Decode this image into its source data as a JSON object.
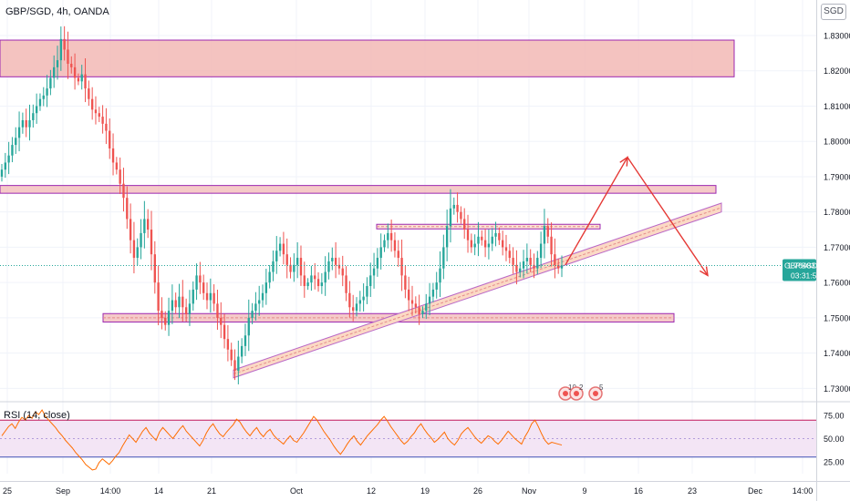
{
  "header": {
    "symbol_title": "GBP/SGD, 4h, OANDA",
    "currency_button": "SGD"
  },
  "price_tag": {
    "symbol": "GBPSGD",
    "price": "1.76483",
    "countdown": "03:31:59"
  },
  "rsi": {
    "title": "RSI (14, close)",
    "upper_band": 70,
    "lower_band": 30
  },
  "markers": [
    {
      "count": "10"
    },
    {
      "count": "2"
    },
    {
      "count": "5"
    }
  ],
  "colors": {
    "zone_fill": "#f2b8b5",
    "zone_border": "#9c27b0",
    "channel_fill": "#fbd9c4",
    "channel_border": "#b967c7",
    "arrow": "#e53935",
    "candle_up": "#26a69a",
    "candle_down": "#ef5350",
    "rsi_line": "#ff6d00",
    "rsi_band": "#f3e5f5"
  },
  "chart_data": [
    {
      "type": "candlestick",
      "title": "GBP/SGD, 4h, OANDA",
      "x_tick_labels": [
        "25",
        "Sep",
        "14:00",
        "14",
        "21",
        "Oct",
        "12",
        "19",
        "26",
        "Nov",
        "9",
        "16",
        "23",
        "Dec",
        "14:00"
      ],
      "y_tick_labels": [
        "1.83000",
        "1.82000",
        "1.81000",
        "1.80000",
        "1.79000",
        "1.78000",
        "1.77000",
        "1.76000",
        "1.75000",
        "1.74000",
        "1.73000"
      ],
      "ylim": [
        1.727,
        1.838
      ],
      "last_price": 1.76483,
      "series": [
        {
          "name": "close",
          "values": [
            1.792,
            1.794,
            1.796,
            1.799,
            1.801,
            1.804,
            1.806,
            1.804,
            1.806,
            1.808,
            1.81,
            1.812,
            1.813,
            1.815,
            1.818,
            1.821,
            1.823,
            1.829,
            1.826,
            1.822,
            1.821,
            1.818,
            1.817,
            1.819,
            1.815,
            1.812,
            1.809,
            1.808,
            1.807,
            1.805,
            1.803,
            1.798,
            1.794,
            1.792,
            1.788,
            1.784,
            1.778,
            1.772,
            1.767,
            1.77,
            1.774,
            1.778,
            1.775,
            1.768,
            1.76,
            1.752,
            1.75,
            1.748,
            1.752,
            1.755,
            1.753,
            1.756,
            1.753,
            1.751,
            1.754,
            1.758,
            1.762,
            1.76,
            1.757,
            1.755,
            1.757,
            1.754,
            1.75,
            1.748,
            1.744,
            1.741,
            1.738,
            1.735,
            1.739,
            1.742,
            1.745,
            1.75,
            1.752,
            1.754,
            1.755,
            1.757,
            1.76,
            1.763,
            1.766,
            1.769,
            1.771,
            1.768,
            1.765,
            1.763,
            1.765,
            1.767,
            1.762,
            1.759,
            1.76,
            1.762,
            1.761,
            1.759,
            1.76,
            1.763,
            1.766,
            1.767,
            1.765,
            1.764,
            1.762,
            1.757,
            1.753,
            1.752,
            1.754,
            1.755,
            1.756,
            1.759,
            1.762,
            1.764,
            1.767,
            1.77,
            1.772,
            1.774,
            1.772,
            1.769,
            1.767,
            1.762,
            1.758,
            1.755,
            1.754,
            1.753,
            1.751,
            1.752,
            1.754,
            1.756,
            1.758,
            1.76,
            1.764,
            1.77,
            1.776,
            1.781,
            1.782,
            1.78,
            1.778,
            1.775,
            1.772,
            1.77,
            1.771,
            1.773,
            1.772,
            1.77,
            1.771,
            1.773,
            1.774,
            1.772,
            1.77,
            1.769,
            1.767,
            1.765,
            1.763,
            1.764,
            1.766,
            1.767,
            1.765,
            1.764,
            1.767,
            1.771,
            1.776,
            1.773,
            1.768,
            1.765,
            1.764,
            1.7648
          ]
        }
      ],
      "annotations": [
        {
          "kind": "zone",
          "y_range": [
            1.8183,
            1.8287
          ]
        },
        {
          "kind": "zone",
          "y_range": [
            1.7853,
            1.7875
          ]
        },
        {
          "kind": "zone",
          "y_range": [
            1.7488,
            1.7512
          ]
        },
        {
          "kind": "zone",
          "y_range": [
            1.7752,
            1.7765
          ]
        },
        {
          "kind": "rising_channel",
          "from": [
            1.733,
            1.7352
          ],
          "to": [
            1.78,
            1.7825
          ]
        },
        {
          "kind": "projection_arrow",
          "path": [
            1.765,
            1.7955,
            1.762
          ]
        }
      ]
    },
    {
      "type": "line",
      "title": "RSI (14, close)",
      "y_tick_labels": [
        "75.00",
        "50.00",
        "25.00"
      ],
      "ylim": [
        12,
        85
      ],
      "bands": [
        30,
        70
      ],
      "series": [
        {
          "name": "RSI",
          "values": [
            53,
            58,
            63,
            66,
            61,
            68,
            73,
            70,
            75,
            72,
            79,
            76,
            81,
            74,
            70,
            66,
            62,
            57,
            53,
            48,
            44,
            40,
            35,
            31,
            27,
            22,
            19,
            16,
            17,
            24,
            28,
            25,
            22,
            26,
            31,
            35,
            42,
            48,
            54,
            50,
            46,
            52,
            58,
            62,
            56,
            52,
            48,
            57,
            62,
            58,
            54,
            50,
            55,
            60,
            64,
            58,
            54,
            50,
            46,
            42,
            48,
            56,
            62,
            66,
            60,
            55,
            52,
            57,
            61,
            65,
            71,
            68,
            62,
            57,
            53,
            58,
            62,
            56,
            52,
            57,
            60,
            54,
            50,
            47,
            44,
            49,
            53,
            48,
            46,
            51,
            56,
            62,
            68,
            74,
            70,
            64,
            58,
            53,
            48,
            42,
            37,
            33,
            38,
            44,
            49,
            53,
            47,
            43,
            48,
            53,
            57,
            61,
            65,
            70,
            74,
            69,
            63,
            58,
            53,
            48,
            44,
            47,
            52,
            56,
            62,
            66,
            60,
            55,
            51,
            46,
            49,
            53,
            57,
            50,
            46,
            43,
            48,
            55,
            59,
            62,
            57,
            52,
            48,
            45,
            49,
            53,
            51,
            47,
            44,
            48,
            53,
            58,
            54,
            50,
            47,
            44,
            52,
            58,
            66,
            70,
            63,
            55,
            48,
            44,
            46,
            45,
            44,
            43
          ]
        }
      ]
    }
  ]
}
